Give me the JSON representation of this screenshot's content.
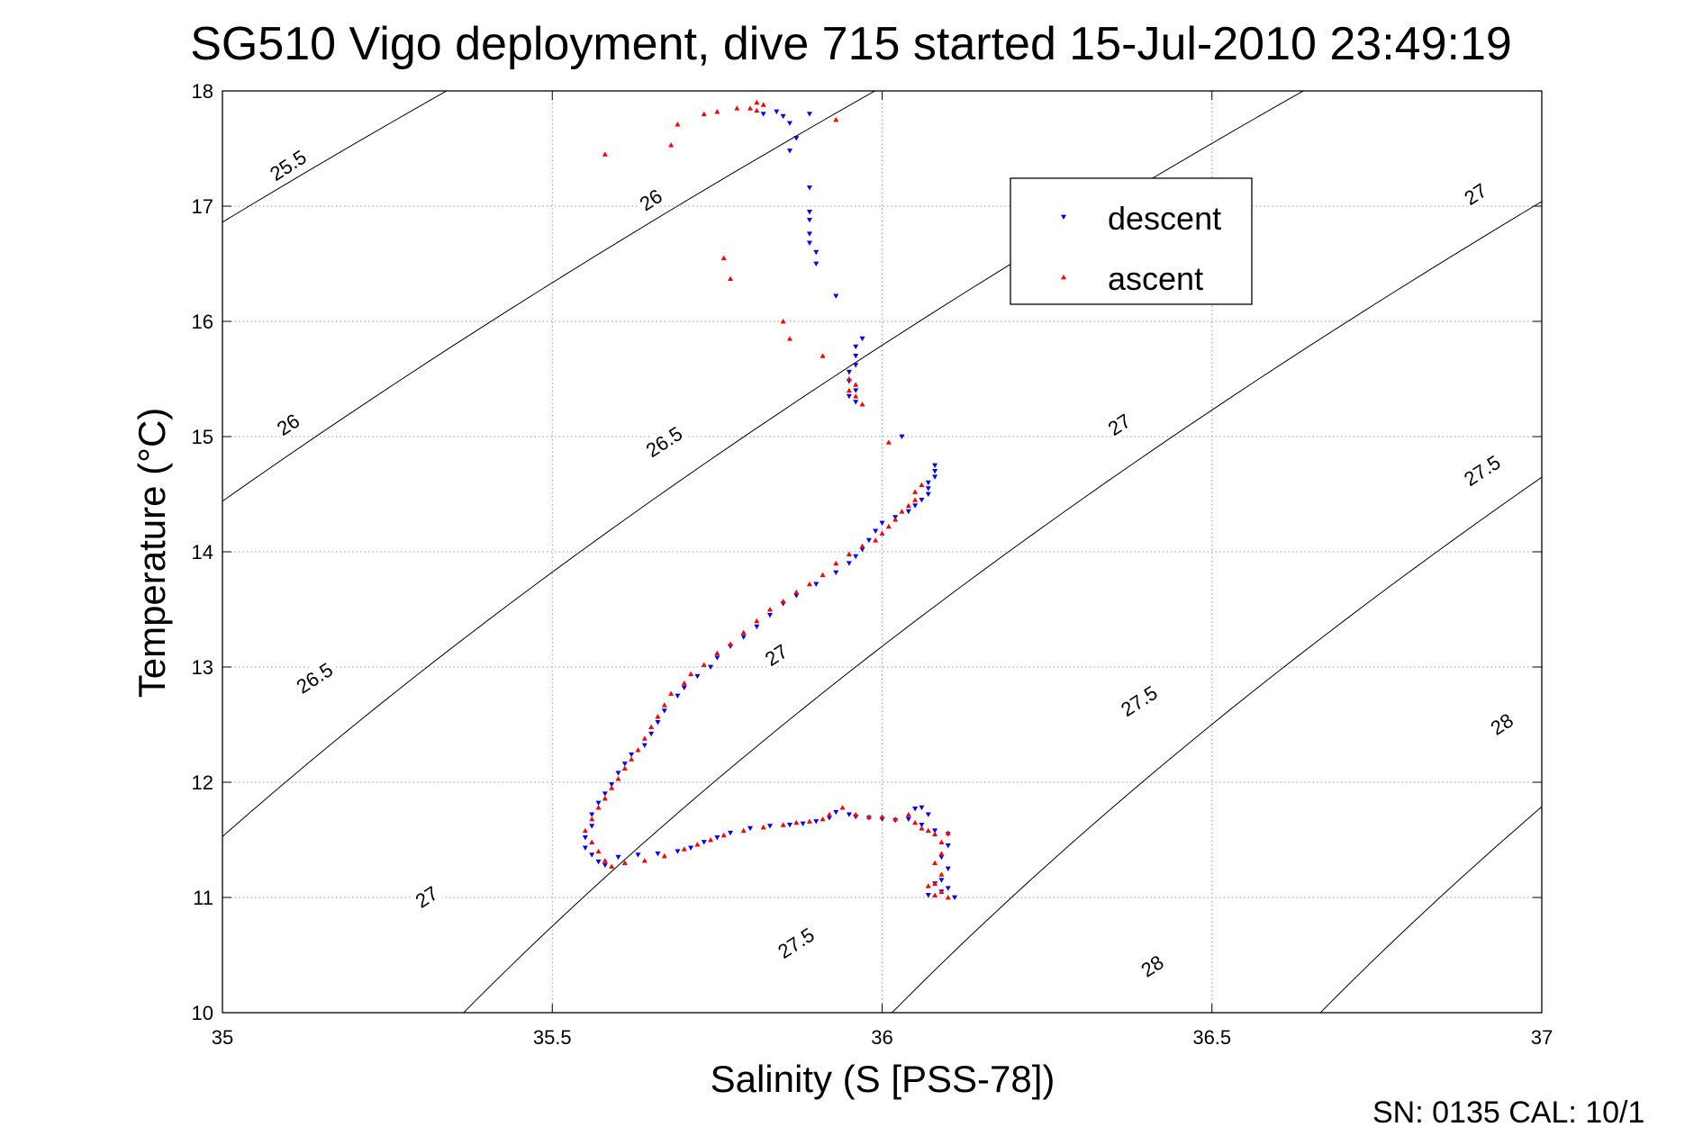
{
  "chart_data": {
    "type": "scatter",
    "title": "SG510 Vigo deployment, dive 715 started 15-Jul-2010 23:49:19",
    "xlabel": "Salinity (S [PSS-78])",
    "ylabel": "Temperature (°C)",
    "xlim": [
      35,
      37
    ],
    "ylim": [
      10,
      18
    ],
    "xticks": [
      "35",
      "35.5",
      "36",
      "36.5",
      "37"
    ],
    "yticks": [
      "10",
      "11",
      "12",
      "13",
      "14",
      "15",
      "16",
      "17",
      "18"
    ],
    "grid": true,
    "legend_position": "upper-right",
    "footer": "SN: 0135  CAL: 10/1",
    "contours": [
      {
        "label": "25.5",
        "label_positions": [
          [
            35.1,
            17.35
          ]
        ]
      },
      {
        "label": "26",
        "label_positions": [
          [
            35.1,
            15.1
          ],
          [
            35.65,
            17.05
          ]
        ]
      },
      {
        "label": "26.5",
        "label_positions": [
          [
            35.14,
            12.9
          ],
          [
            35.67,
            14.95
          ]
        ]
      },
      {
        "label": "27",
        "label_positions": [
          [
            35.31,
            11.0
          ],
          [
            35.84,
            13.1
          ],
          [
            36.36,
            15.1
          ],
          [
            36.9,
            17.1
          ]
        ]
      },
      {
        "label": "27.5",
        "label_positions": [
          [
            35.87,
            10.6
          ],
          [
            36.39,
            12.7
          ],
          [
            36.91,
            14.7
          ]
        ]
      },
      {
        "label": "28",
        "label_positions": [
          [
            36.41,
            10.4
          ],
          [
            36.94,
            12.5
          ]
        ]
      }
    ],
    "series": [
      {
        "name": "descent",
        "color": "#0000ff",
        "marker": "triangle-down",
        "points": [
          [
            35.84,
            17.82
          ],
          [
            35.82,
            17.8
          ],
          [
            35.85,
            17.78
          ],
          [
            35.89,
            17.8
          ],
          [
            35.86,
            17.72
          ],
          [
            35.87,
            17.59
          ],
          [
            35.86,
            17.48
          ],
          [
            35.89,
            17.16
          ],
          [
            35.89,
            16.95
          ],
          [
            35.89,
            16.88
          ],
          [
            35.89,
            16.76
          ],
          [
            35.89,
            16.68
          ],
          [
            35.9,
            16.6
          ],
          [
            35.9,
            16.5
          ],
          [
            35.93,
            16.22
          ],
          [
            35.97,
            15.85
          ],
          [
            35.96,
            15.78
          ],
          [
            35.96,
            15.7
          ],
          [
            35.96,
            15.62
          ],
          [
            35.95,
            15.56
          ],
          [
            35.95,
            15.48
          ],
          [
            35.96,
            15.4
          ],
          [
            35.95,
            15.35
          ],
          [
            35.96,
            15.3
          ],
          [
            36.03,
            15.0
          ],
          [
            36.08,
            14.75
          ],
          [
            36.08,
            14.7
          ],
          [
            36.08,
            14.65
          ],
          [
            36.07,
            14.6
          ],
          [
            36.07,
            14.55
          ],
          [
            36.07,
            14.5
          ],
          [
            36.06,
            14.45
          ],
          [
            36.05,
            14.4
          ],
          [
            36.04,
            14.35
          ],
          [
            36.02,
            14.3
          ],
          [
            36.0,
            14.25
          ],
          [
            35.99,
            14.18
          ],
          [
            35.98,
            14.1
          ],
          [
            35.97,
            14.02
          ],
          [
            35.96,
            13.96
          ],
          [
            35.95,
            13.9
          ],
          [
            35.93,
            13.82
          ],
          [
            35.9,
            13.72
          ],
          [
            35.87,
            13.62
          ],
          [
            35.85,
            13.55
          ],
          [
            35.83,
            13.45
          ],
          [
            35.81,
            13.35
          ],
          [
            35.79,
            13.26
          ],
          [
            35.77,
            13.18
          ],
          [
            35.75,
            13.08
          ],
          [
            35.74,
            13.0
          ],
          [
            35.72,
            12.92
          ],
          [
            35.7,
            12.82
          ],
          [
            35.69,
            12.75
          ],
          [
            35.67,
            12.62
          ],
          [
            35.66,
            12.52
          ],
          [
            35.65,
            12.42
          ],
          [
            35.64,
            12.32
          ],
          [
            35.62,
            12.24
          ],
          [
            35.61,
            12.16
          ],
          [
            35.6,
            12.08
          ],
          [
            35.59,
            11.98
          ],
          [
            35.58,
            11.9
          ],
          [
            35.57,
            11.82
          ],
          [
            35.56,
            11.72
          ],
          [
            35.56,
            11.62
          ],
          [
            35.55,
            11.52
          ],
          [
            35.55,
            11.43
          ],
          [
            35.56,
            11.37
          ],
          [
            35.57,
            11.31
          ],
          [
            35.58,
            11.28
          ],
          [
            35.6,
            11.35
          ],
          [
            35.63,
            11.37
          ],
          [
            35.66,
            11.38
          ],
          [
            35.69,
            11.4
          ],
          [
            35.71,
            11.43
          ],
          [
            35.73,
            11.48
          ],
          [
            35.75,
            11.52
          ],
          [
            35.77,
            11.56
          ],
          [
            35.8,
            11.6
          ],
          [
            35.83,
            11.62
          ],
          [
            35.86,
            11.63
          ],
          [
            35.88,
            11.64
          ],
          [
            35.9,
            11.66
          ],
          [
            35.92,
            11.69
          ],
          [
            35.93,
            11.74
          ],
          [
            35.95,
            11.72
          ],
          [
            35.96,
            11.7
          ],
          [
            35.98,
            11.69
          ],
          [
            36.0,
            11.68
          ],
          [
            36.02,
            11.67
          ],
          [
            36.04,
            11.68
          ],
          [
            36.05,
            11.77
          ],
          [
            36.06,
            11.78
          ],
          [
            36.07,
            11.72
          ],
          [
            36.06,
            11.63
          ],
          [
            36.08,
            11.58
          ],
          [
            36.1,
            11.55
          ],
          [
            36.1,
            11.45
          ],
          [
            36.09,
            11.35
          ],
          [
            36.1,
            11.25
          ],
          [
            36.09,
            11.15
          ],
          [
            36.1,
            11.08
          ],
          [
            36.11,
            11.0
          ],
          [
            36.09,
            11.05
          ],
          [
            36.08,
            11.12
          ],
          [
            36.07,
            11.02
          ]
        ]
      },
      {
        "name": "ascent",
        "color": "#ff0000",
        "marker": "triangle-up",
        "points": [
          [
            35.58,
            17.45
          ],
          [
            35.69,
            17.71
          ],
          [
            35.73,
            17.8
          ],
          [
            35.75,
            17.82
          ],
          [
            35.78,
            17.85
          ],
          [
            35.8,
            17.85
          ],
          [
            35.81,
            17.9
          ],
          [
            35.82,
            17.88
          ],
          [
            35.81,
            17.83
          ],
          [
            35.93,
            17.75
          ],
          [
            35.68,
            17.53
          ],
          [
            35.76,
            16.55
          ],
          [
            35.77,
            16.37
          ],
          [
            35.85,
            16.0
          ],
          [
            35.86,
            15.85
          ],
          [
            35.91,
            15.7
          ],
          [
            35.95,
            15.5
          ],
          [
            35.96,
            15.45
          ],
          [
            35.95,
            15.4
          ],
          [
            35.96,
            15.35
          ],
          [
            35.97,
            15.28
          ],
          [
            36.01,
            14.95
          ],
          [
            36.06,
            14.58
          ],
          [
            36.05,
            14.52
          ],
          [
            36.05,
            14.45
          ],
          [
            36.04,
            14.4
          ],
          [
            36.03,
            14.35
          ],
          [
            36.02,
            14.28
          ],
          [
            36.01,
            14.22
          ],
          [
            36.0,
            14.16
          ],
          [
            35.99,
            14.1
          ],
          [
            35.97,
            14.05
          ],
          [
            35.95,
            13.98
          ],
          [
            35.93,
            13.9
          ],
          [
            35.91,
            13.8
          ],
          [
            35.89,
            13.72
          ],
          [
            35.87,
            13.65
          ],
          [
            35.85,
            13.57
          ],
          [
            35.83,
            13.5
          ],
          [
            35.81,
            13.4
          ],
          [
            35.79,
            13.3
          ],
          [
            35.77,
            13.2
          ],
          [
            35.75,
            13.12
          ],
          [
            35.73,
            13.02
          ],
          [
            35.71,
            12.94
          ],
          [
            35.7,
            12.86
          ],
          [
            35.68,
            12.77
          ],
          [
            35.67,
            12.67
          ],
          [
            35.66,
            12.57
          ],
          [
            35.65,
            12.48
          ],
          [
            35.64,
            12.38
          ],
          [
            35.63,
            12.28
          ],
          [
            35.62,
            12.2
          ],
          [
            35.61,
            12.12
          ],
          [
            35.6,
            12.03
          ],
          [
            35.59,
            11.95
          ],
          [
            35.58,
            11.86
          ],
          [
            35.57,
            11.78
          ],
          [
            35.56,
            11.68
          ],
          [
            35.55,
            11.58
          ],
          [
            35.56,
            11.48
          ],
          [
            35.57,
            11.4
          ],
          [
            35.58,
            11.32
          ],
          [
            35.59,
            11.27
          ],
          [
            35.61,
            11.3
          ],
          [
            35.64,
            11.32
          ],
          [
            35.67,
            11.36
          ],
          [
            35.7,
            11.42
          ],
          [
            35.72,
            11.46
          ],
          [
            35.74,
            11.5
          ],
          [
            35.76,
            11.54
          ],
          [
            35.79,
            11.58
          ],
          [
            35.82,
            11.61
          ],
          [
            35.85,
            11.63
          ],
          [
            35.87,
            11.65
          ],
          [
            35.89,
            11.66
          ],
          [
            35.91,
            11.68
          ],
          [
            35.92,
            11.72
          ],
          [
            35.94,
            11.78
          ],
          [
            35.96,
            11.72
          ],
          [
            35.98,
            11.7
          ],
          [
            36.0,
            11.7
          ],
          [
            36.02,
            11.68
          ],
          [
            36.04,
            11.72
          ],
          [
            36.05,
            11.65
          ],
          [
            36.06,
            11.6
          ],
          [
            36.07,
            11.58
          ],
          [
            36.08,
            11.55
          ],
          [
            36.1,
            11.56
          ],
          [
            36.09,
            11.48
          ],
          [
            36.09,
            11.38
          ],
          [
            36.08,
            11.3
          ],
          [
            36.09,
            11.2
          ],
          [
            36.08,
            11.12
          ],
          [
            36.09,
            11.05
          ],
          [
            36.1,
            11.0
          ],
          [
            36.08,
            11.02
          ],
          [
            36.07,
            11.1
          ]
        ]
      }
    ]
  }
}
